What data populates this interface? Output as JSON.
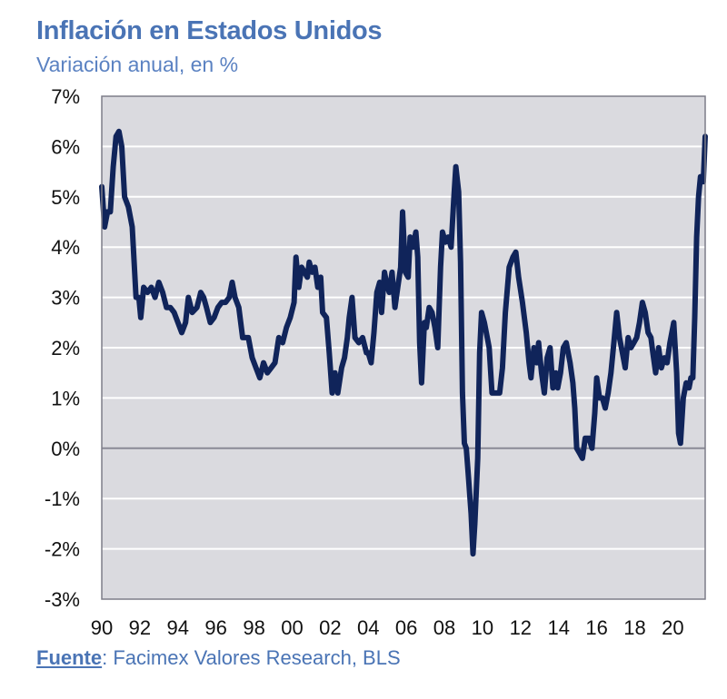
{
  "title": "Inflación en Estados Unidos",
  "subtitle": "Variación anual, en %",
  "source": {
    "label": "Fuente",
    "separator": ":",
    "text": " Facimex Valores Research, BLS"
  },
  "colors": {
    "title": "#4a74b5",
    "line": "#10245a",
    "plot_bg": "#dadadf",
    "grid": "#ffffff",
    "zero_line": "#8a8a96"
  },
  "chart_data": {
    "type": "line",
    "title": "Inflación en Estados Unidos",
    "subtitle": "Variación anual, en %",
    "xlabel": "",
    "ylabel": "",
    "xlim": [
      1990,
      2021.7
    ],
    "ylim": [
      -3,
      7
    ],
    "y_ticks": [
      -3,
      -2,
      -1,
      0,
      1,
      2,
      3,
      4,
      5,
      6,
      7
    ],
    "y_tick_labels": [
      "-3%",
      "-2%",
      "-1%",
      "0%",
      "1%",
      "2%",
      "3%",
      "4%",
      "5%",
      "6%",
      "7%"
    ],
    "x_ticks": [
      1990,
      1992,
      1994,
      1996,
      1998,
      2000,
      2002,
      2004,
      2006,
      2008,
      2010,
      2012,
      2014,
      2016,
      2018,
      2020
    ],
    "x_tick_labels": [
      "90",
      "92",
      "94",
      "96",
      "98",
      "00",
      "02",
      "04",
      "06",
      "08",
      "10",
      "12",
      "14",
      "16",
      "18",
      "20"
    ],
    "grid": true,
    "legend": "none",
    "series": [
      {
        "points": [
          [
            1990.0,
            5.2
          ],
          [
            1990.15,
            4.4
          ],
          [
            1990.3,
            4.7
          ],
          [
            1990.45,
            4.7
          ],
          [
            1990.6,
            5.6
          ],
          [
            1990.75,
            6.2
          ],
          [
            1990.9,
            6.3
          ],
          [
            1991.05,
            6.0
          ],
          [
            1991.2,
            5.0
          ],
          [
            1991.4,
            4.8
          ],
          [
            1991.6,
            4.4
          ],
          [
            1991.8,
            3.0
          ],
          [
            1991.95,
            3.0
          ],
          [
            1992.05,
            2.6
          ],
          [
            1992.2,
            3.2
          ],
          [
            1992.4,
            3.1
          ],
          [
            1992.6,
            3.2
          ],
          [
            1992.8,
            3.0
          ],
          [
            1993.0,
            3.3
          ],
          [
            1993.2,
            3.1
          ],
          [
            1993.4,
            2.8
          ],
          [
            1993.6,
            2.8
          ],
          [
            1993.8,
            2.7
          ],
          [
            1994.0,
            2.5
          ],
          [
            1994.2,
            2.3
          ],
          [
            1994.4,
            2.5
          ],
          [
            1994.55,
            3.0
          ],
          [
            1994.75,
            2.7
          ],
          [
            1995.0,
            2.8
          ],
          [
            1995.2,
            3.1
          ],
          [
            1995.35,
            3.0
          ],
          [
            1995.5,
            2.8
          ],
          [
            1995.7,
            2.5
          ],
          [
            1995.9,
            2.6
          ],
          [
            1996.1,
            2.8
          ],
          [
            1996.3,
            2.9
          ],
          [
            1996.5,
            2.9
          ],
          [
            1996.7,
            3.0
          ],
          [
            1996.85,
            3.3
          ],
          [
            1997.0,
            3.0
          ],
          [
            1997.2,
            2.8
          ],
          [
            1997.4,
            2.2
          ],
          [
            1997.7,
            2.2
          ],
          [
            1997.9,
            1.8
          ],
          [
            1998.1,
            1.6
          ],
          [
            1998.3,
            1.4
          ],
          [
            1998.5,
            1.7
          ],
          [
            1998.7,
            1.5
          ],
          [
            1998.9,
            1.6
          ],
          [
            1999.1,
            1.7
          ],
          [
            1999.3,
            2.2
          ],
          [
            1999.5,
            2.1
          ],
          [
            1999.7,
            2.4
          ],
          [
            1999.9,
            2.6
          ],
          [
            2000.1,
            2.9
          ],
          [
            2000.2,
            3.8
          ],
          [
            2000.35,
            3.2
          ],
          [
            2000.5,
            3.6
          ],
          [
            2000.65,
            3.5
          ],
          [
            2000.8,
            3.4
          ],
          [
            2000.9,
            3.7
          ],
          [
            2001.05,
            3.5
          ],
          [
            2001.2,
            3.6
          ],
          [
            2001.35,
            3.2
          ],
          [
            2001.5,
            3.4
          ],
          [
            2001.6,
            2.7
          ],
          [
            2001.8,
            2.6
          ],
          [
            2001.95,
            1.9
          ],
          [
            2002.1,
            1.1
          ],
          [
            2002.25,
            1.5
          ],
          [
            2002.4,
            1.1
          ],
          [
            2002.6,
            1.6
          ],
          [
            2002.75,
            1.8
          ],
          [
            2002.9,
            2.2
          ],
          [
            2003.0,
            2.6
          ],
          [
            2003.15,
            3.0
          ],
          [
            2003.3,
            2.2
          ],
          [
            2003.5,
            2.1
          ],
          [
            2003.7,
            2.2
          ],
          [
            2003.9,
            1.9
          ],
          [
            2004.0,
            1.9
          ],
          [
            2004.15,
            1.7
          ],
          [
            2004.3,
            2.3
          ],
          [
            2004.45,
            3.1
          ],
          [
            2004.6,
            3.3
          ],
          [
            2004.7,
            2.7
          ],
          [
            2004.85,
            3.5
          ],
          [
            2004.95,
            3.3
          ],
          [
            2005.1,
            3.1
          ],
          [
            2005.25,
            3.5
          ],
          [
            2005.4,
            2.8
          ],
          [
            2005.55,
            3.2
          ],
          [
            2005.7,
            3.6
          ],
          [
            2005.8,
            4.7
          ],
          [
            2005.95,
            3.5
          ],
          [
            2006.1,
            3.4
          ],
          [
            2006.2,
            4.2
          ],
          [
            2006.35,
            4.0
          ],
          [
            2006.5,
            4.3
          ],
          [
            2006.6,
            3.8
          ],
          [
            2006.7,
            2.1
          ],
          [
            2006.8,
            1.3
          ],
          [
            2006.95,
            2.5
          ],
          [
            2007.05,
            2.4
          ],
          [
            2007.2,
            2.8
          ],
          [
            2007.35,
            2.7
          ],
          [
            2007.5,
            2.4
          ],
          [
            2007.65,
            2.0
          ],
          [
            2007.8,
            3.6
          ],
          [
            2007.9,
            4.3
          ],
          [
            2008.05,
            4.1
          ],
          [
            2008.2,
            4.2
          ],
          [
            2008.35,
            4.0
          ],
          [
            2008.5,
            5.0
          ],
          [
            2008.6,
            5.6
          ],
          [
            2008.75,
            5.1
          ],
          [
            2008.85,
            3.7
          ],
          [
            2008.95,
            1.1
          ],
          [
            2009.05,
            0.1
          ],
          [
            2009.15,
            0.0
          ],
          [
            2009.25,
            -0.5
          ],
          [
            2009.4,
            -1.3
          ],
          [
            2009.5,
            -2.1
          ],
          [
            2009.6,
            -1.5
          ],
          [
            2009.75,
            -0.2
          ],
          [
            2009.85,
            1.9
          ],
          [
            2009.95,
            2.7
          ],
          [
            2010.1,
            2.5
          ],
          [
            2010.25,
            2.2
          ],
          [
            2010.35,
            2.0
          ],
          [
            2010.5,
            1.1
          ],
          [
            2010.7,
            1.1
          ],
          [
            2010.9,
            1.1
          ],
          [
            2011.05,
            1.6
          ],
          [
            2011.2,
            2.7
          ],
          [
            2011.4,
            3.6
          ],
          [
            2011.6,
            3.8
          ],
          [
            2011.75,
            3.9
          ],
          [
            2011.9,
            3.4
          ],
          [
            2012.1,
            2.9
          ],
          [
            2012.3,
            2.3
          ],
          [
            2012.45,
            1.7
          ],
          [
            2012.55,
            1.4
          ],
          [
            2012.7,
            2.0
          ],
          [
            2012.85,
            1.7
          ],
          [
            2012.95,
            2.1
          ],
          [
            2013.1,
            1.5
          ],
          [
            2013.25,
            1.1
          ],
          [
            2013.4,
            1.8
          ],
          [
            2013.55,
            2.0
          ],
          [
            2013.7,
            1.2
          ],
          [
            2013.85,
            1.5
          ],
          [
            2013.95,
            1.2
          ],
          [
            2014.1,
            1.5
          ],
          [
            2014.25,
            2.0
          ],
          [
            2014.4,
            2.1
          ],
          [
            2014.6,
            1.7
          ],
          [
            2014.75,
            1.3
          ],
          [
            2014.85,
            0.8
          ],
          [
            2014.95,
            0.0
          ],
          [
            2015.1,
            -0.1
          ],
          [
            2015.25,
            -0.2
          ],
          [
            2015.4,
            0.2
          ],
          [
            2015.6,
            0.2
          ],
          [
            2015.75,
            0.0
          ],
          [
            2015.9,
            0.7
          ],
          [
            2016.0,
            1.4
          ],
          [
            2016.15,
            1.0
          ],
          [
            2016.3,
            1.0
          ],
          [
            2016.45,
            0.8
          ],
          [
            2016.6,
            1.1
          ],
          [
            2016.75,
            1.5
          ],
          [
            2016.9,
            2.1
          ],
          [
            2017.05,
            2.7
          ],
          [
            2017.2,
            2.2
          ],
          [
            2017.35,
            1.9
          ],
          [
            2017.5,
            1.6
          ],
          [
            2017.65,
            2.2
          ],
          [
            2017.8,
            2.0
          ],
          [
            2017.95,
            2.1
          ],
          [
            2018.1,
            2.2
          ],
          [
            2018.25,
            2.5
          ],
          [
            2018.4,
            2.9
          ],
          [
            2018.55,
            2.7
          ],
          [
            2018.7,
            2.3
          ],
          [
            2018.85,
            2.2
          ],
          [
            2018.95,
            1.9
          ],
          [
            2019.1,
            1.5
          ],
          [
            2019.25,
            2.0
          ],
          [
            2019.4,
            1.6
          ],
          [
            2019.55,
            1.8
          ],
          [
            2019.7,
            1.7
          ],
          [
            2019.85,
            2.1
          ],
          [
            2019.95,
            2.3
          ],
          [
            2020.05,
            2.5
          ],
          [
            2020.2,
            1.5
          ],
          [
            2020.3,
            0.3
          ],
          [
            2020.4,
            0.1
          ],
          [
            2020.55,
            1.0
          ],
          [
            2020.7,
            1.3
          ],
          [
            2020.85,
            1.2
          ],
          [
            2020.95,
            1.4
          ],
          [
            2021.05,
            1.4
          ],
          [
            2021.15,
            2.6
          ],
          [
            2021.25,
            4.2
          ],
          [
            2021.35,
            5.0
          ],
          [
            2021.45,
            5.4
          ],
          [
            2021.55,
            5.4
          ],
          [
            2021.6,
            5.3
          ],
          [
            2021.7,
            6.2
          ]
        ]
      }
    ]
  }
}
